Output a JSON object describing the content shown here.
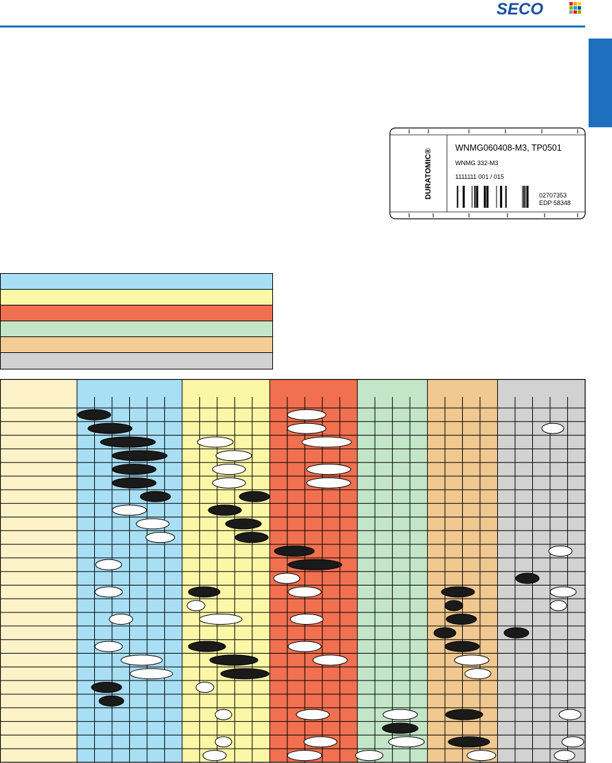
{
  "header": {
    "logo": "SECO"
  },
  "label": {
    "brand": "DURATOMIC®",
    "insert": "WNMG060408-M3, TP0501",
    "ansi": "WNMG 332-M3",
    "batch": "1111111 001 / 015",
    "code": "02707353",
    "edp": "EDP 58348"
  }
}
